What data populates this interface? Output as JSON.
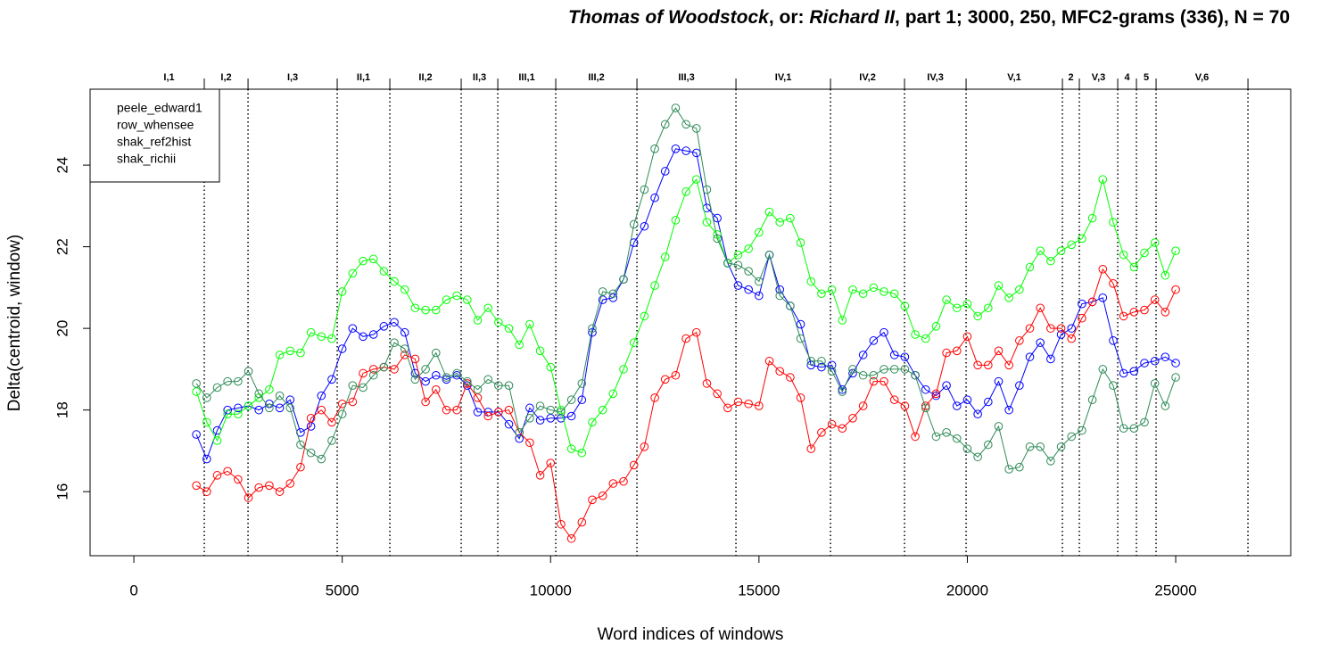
{
  "chart_data": {
    "type": "line",
    "title_parts": [
      {
        "text": "Thomas of Woodstock",
        "italic": true
      },
      {
        "text": ", or: ",
        "italic": false
      },
      {
        "text": "Richard II",
        "italic": true
      },
      {
        "text": ", part 1; 3000, 250, MFC2-grams (336), N = 70",
        "italic": false
      }
    ],
    "x_label": "Word indices of windows",
    "y_label": "Delta(centroid, window)",
    "xlim": [
      -1050,
      27760
    ],
    "ylim": [
      14.43,
      25.86
    ],
    "xticks": [
      0,
      5000,
      10000,
      15000,
      20000,
      25000
    ],
    "yticks": [
      16,
      18,
      20,
      22,
      24
    ],
    "legend": "top-left",
    "scene_breaks": [
      1690,
      2740,
      4880,
      6143,
      7855,
      8733,
      10124,
      12072,
      14448,
      16717,
      18493,
      19970,
      22282,
      22688,
      23609,
      24058,
      24529,
      26734
    ],
    "scene_labels": [
      "I,1",
      "I,2",
      "I,3",
      "II,1",
      "II,2",
      "II,3",
      "III,1",
      "III,2",
      "III,3",
      "IV,1",
      "IV,2",
      "IV,3",
      "V,1",
      "2",
      "V,3",
      "4",
      "5",
      "V,6"
    ],
    "x": [
      1500,
      1750,
      2000,
      2250,
      2500,
      2750,
      3000,
      3250,
      3500,
      3750,
      4000,
      4250,
      4500,
      4750,
      5000,
      5250,
      5500,
      5750,
      6000,
      6250,
      6500,
      6750,
      7000,
      7250,
      7500,
      7750,
      8000,
      8250,
      8500,
      8750,
      9000,
      9250,
      9500,
      9750,
      10000,
      10250,
      10500,
      10750,
      11000,
      11250,
      11500,
      11750,
      12000,
      12250,
      12500,
      12750,
      13000,
      13250,
      13500,
      13750,
      14000,
      14250,
      14500,
      14750,
      15000,
      15250,
      15500,
      15750,
      16000,
      16250,
      16500,
      16750,
      17000,
      17250,
      17500,
      17750,
      18000,
      18250,
      18500,
      18750,
      19000,
      19250,
      19500,
      19750,
      20000,
      20250,
      20500,
      20750,
      21000,
      21250,
      21500,
      21750,
      22000,
      22250,
      22500,
      22750,
      23000,
      23250,
      23500,
      23750,
      24000,
      24250,
      24500,
      24750,
      25000
    ],
    "series": [
      {
        "name": "peele_edward1",
        "color": "#0000ff",
        "values": [
          17.4,
          16.8,
          17.5,
          18.0,
          18.05,
          18.1,
          18.0,
          18.15,
          18.05,
          18.25,
          17.45,
          17.6,
          18.35,
          18.75,
          19.5,
          20.0,
          19.8,
          19.85,
          20.05,
          20.15,
          19.9,
          18.9,
          18.7,
          18.85,
          18.75,
          18.85,
          18.6,
          17.95,
          17.95,
          17.95,
          17.65,
          17.3,
          18.05,
          17.75,
          17.8,
          17.8,
          17.85,
          18.25,
          19.9,
          20.7,
          20.75,
          21.2,
          22.1,
          22.5,
          23.2,
          23.85,
          24.4,
          24.35,
          24.3,
          22.95,
          22.7,
          21.6,
          21.05,
          20.95,
          20.8,
          21.8,
          20.95,
          20.55,
          20.1,
          19.1,
          19.05,
          19.1,
          18.5,
          18.9,
          19.35,
          19.7,
          19.9,
          19.35,
          19.3,
          18.85,
          18.5,
          18.35,
          18.6,
          18.1,
          18.25,
          17.9,
          18.2,
          18.7,
          18.0,
          18.6,
          19.3,
          19.65,
          19.25,
          19.85,
          20.0,
          20.6,
          20.65,
          20.75,
          19.7,
          18.9,
          18.95,
          19.15,
          19.2,
          19.3,
          19.15
        ]
      },
      {
        "name": "row_whensee",
        "color": "#ff0000",
        "values": [
          16.15,
          16.0,
          16.4,
          16.5,
          16.3,
          15.85,
          16.1,
          16.15,
          16.0,
          16.2,
          16.6,
          17.8,
          18.0,
          17.7,
          18.15,
          18.2,
          18.9,
          19.0,
          19.05,
          19.0,
          19.35,
          19.25,
          18.2,
          18.5,
          18.0,
          18.0,
          18.65,
          18.3,
          17.85,
          17.95,
          18.0,
          17.45,
          17.2,
          16.4,
          16.7,
          15.2,
          14.85,
          15.25,
          15.8,
          15.9,
          16.2,
          16.25,
          16.65,
          17.1,
          18.3,
          18.75,
          18.85,
          19.75,
          19.9,
          18.65,
          18.4,
          18.05,
          18.2,
          18.15,
          18.1,
          19.2,
          18.95,
          18.8,
          18.3,
          17.05,
          17.45,
          17.65,
          17.55,
          17.8,
          18.1,
          18.7,
          18.7,
          18.25,
          18.1,
          17.35,
          18.1,
          18.4,
          19.4,
          19.45,
          19.8,
          19.1,
          19.1,
          19.45,
          19.1,
          19.7,
          20.0,
          20.5,
          20.0,
          20.0,
          19.75,
          20.25,
          20.65,
          21.45,
          21.1,
          20.3,
          20.4,
          20.45,
          20.7,
          20.4,
          20.95
        ]
      },
      {
        "name": "shak_ref2hist",
        "color": "#00ff00",
        "values": [
          18.45,
          17.7,
          17.25,
          17.9,
          17.9,
          18.1,
          18.3,
          18.5,
          19.35,
          19.45,
          19.4,
          19.9,
          19.8,
          19.75,
          20.9,
          21.35,
          21.65,
          21.7,
          21.4,
          21.15,
          20.95,
          20.5,
          20.45,
          20.45,
          20.7,
          20.8,
          20.7,
          20.2,
          20.5,
          20.15,
          20.0,
          19.6,
          20.1,
          19.45,
          19.05,
          18.0,
          17.05,
          16.95,
          17.7,
          18.0,
          18.4,
          19.0,
          19.65,
          20.3,
          21.05,
          21.75,
          22.65,
          23.35,
          23.65,
          22.6,
          22.3,
          21.6,
          21.8,
          21.95,
          22.35,
          22.85,
          22.6,
          22.7,
          22.1,
          21.15,
          20.85,
          20.95,
          20.2,
          20.95,
          20.85,
          21.0,
          20.9,
          20.85,
          20.55,
          19.85,
          19.75,
          20.05,
          20.7,
          20.5,
          20.6,
          20.3,
          20.5,
          21.05,
          20.75,
          20.95,
          21.5,
          21.9,
          21.65,
          21.9,
          22.05,
          22.2,
          22.7,
          23.65,
          22.6,
          21.8,
          21.5,
          21.85,
          22.1,
          21.3,
          21.9
        ]
      },
      {
        "name": "shak_richii",
        "color": "#2e8b57",
        "values": [
          18.65,
          18.3,
          18.55,
          18.7,
          18.7,
          18.95,
          18.4,
          18.05,
          18.35,
          18.05,
          17.15,
          16.95,
          16.8,
          17.25,
          17.9,
          18.6,
          18.55,
          18.85,
          19.05,
          19.65,
          19.5,
          18.75,
          19.0,
          19.4,
          18.8,
          18.9,
          18.7,
          18.5,
          18.75,
          18.6,
          18.6,
          17.45,
          17.8,
          18.1,
          18.0,
          17.95,
          18.25,
          18.65,
          20.0,
          20.9,
          20.85,
          21.2,
          22.55,
          23.4,
          24.4,
          25.0,
          25.4,
          25.0,
          24.9,
          23.4,
          22.2,
          21.6,
          21.55,
          21.4,
          21.15,
          21.8,
          20.8,
          20.55,
          19.75,
          19.2,
          19.2,
          18.95,
          18.45,
          19.0,
          18.85,
          18.85,
          19.0,
          19.0,
          19.0,
          18.85,
          18.05,
          17.35,
          17.45,
          17.3,
          17.05,
          16.85,
          17.15,
          17.6,
          16.55,
          16.6,
          17.1,
          17.1,
          16.75,
          17.1,
          17.35,
          17.5,
          18.25,
          19.0,
          18.6,
          17.55,
          17.55,
          17.7,
          18.65,
          18.1,
          18.8
        ]
      }
    ]
  }
}
